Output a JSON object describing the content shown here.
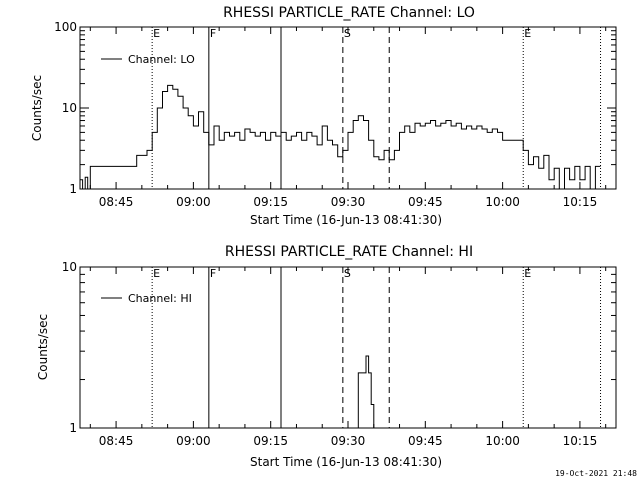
{
  "footer": {
    "stamp": "19-Oct-2021 21:48"
  },
  "chart_data": [
    {
      "type": "line",
      "title": "RHESSI PARTICLE_RATE Channel: LO",
      "xlabel": "Start Time (16-Jun-13 08:41:30)",
      "ylabel": "Counts/sec",
      "y_scale": "log",
      "ylim": [
        1,
        100
      ],
      "xlim": [
        "08:38",
        "10:22"
      ],
      "xticks": [
        "08:45",
        "09:00",
        "09:15",
        "09:30",
        "09:45",
        "10:00",
        "10:15"
      ],
      "yticks": [
        "1",
        "10",
        "100"
      ],
      "legend": {
        "position": "top-left",
        "entries": [
          "Channel: LO"
        ]
      },
      "markers": [
        {
          "time": "08:52",
          "style": "dotted",
          "label": "E"
        },
        {
          "time": "09:03",
          "style": "solid",
          "label": "F"
        },
        {
          "time": "09:17",
          "style": "solid",
          "label": ""
        },
        {
          "time": "09:29",
          "style": "dashed",
          "label": "S"
        },
        {
          "time": "09:38",
          "style": "dashed",
          "label": ""
        },
        {
          "time": "10:04",
          "style": "dotted",
          "label": "E"
        },
        {
          "time": "10:19",
          "style": "dotted",
          "label": ""
        }
      ],
      "series": [
        {
          "name": "Channel: LO",
          "points": [
            [
              "08:38",
              1.3
            ],
            [
              "08:38.5",
              1
            ],
            [
              "08:39",
              1.4
            ],
            [
              "08:39.5",
              1
            ],
            [
              "08:40",
              1.9
            ],
            [
              "08:41",
              1.9
            ],
            [
              "08:42",
              1.9
            ],
            [
              "08:44",
              1.9
            ],
            [
              "08:46",
              1.9
            ],
            [
              "08:48",
              1.9
            ],
            [
              "08:49",
              2.6
            ],
            [
              "08:50",
              2.6
            ],
            [
              "08:51",
              3.0
            ],
            [
              "08:52",
              5
            ],
            [
              "08:53",
              10
            ],
            [
              "08:54",
              16
            ],
            [
              "08:55",
              19
            ],
            [
              "08:56",
              17
            ],
            [
              "08:57",
              14
            ],
            [
              "08:58",
              10
            ],
            [
              "08:59",
              8
            ],
            [
              "09:00",
              6
            ],
            [
              "09:01",
              9
            ],
            [
              "09:02",
              5
            ],
            [
              "09:03",
              3.5
            ],
            [
              "09:04",
              6
            ],
            [
              "09:05",
              4
            ],
            [
              "09:06",
              5
            ],
            [
              "09:07",
              4.5
            ],
            [
              "09:08",
              5
            ],
            [
              "09:09",
              4
            ],
            [
              "09:10",
              5.5
            ],
            [
              "09:11",
              5
            ],
            [
              "09:12",
              4.5
            ],
            [
              "09:13",
              5
            ],
            [
              "09:14",
              4
            ],
            [
              "09:15",
              5
            ],
            [
              "09:16",
              4.5
            ],
            [
              "09:17",
              5
            ],
            [
              "09:18",
              4
            ],
            [
              "09:19",
              4.5
            ],
            [
              "09:20",
              5
            ],
            [
              "09:21",
              4
            ],
            [
              "09:22",
              5
            ],
            [
              "09:23",
              4.5
            ],
            [
              "09:24",
              3.5
            ],
            [
              "09:25",
              6
            ],
            [
              "09:26",
              4
            ],
            [
              "09:27",
              3.5
            ],
            [
              "09:28",
              2.5
            ],
            [
              "09:29",
              3
            ],
            [
              "09:30",
              5
            ],
            [
              "09:31",
              7
            ],
            [
              "09:32",
              8
            ],
            [
              "09:33",
              7
            ],
            [
              "09:34",
              4
            ],
            [
              "09:35",
              2.5
            ],
            [
              "09:36",
              2.3
            ],
            [
              "09:37",
              3
            ],
            [
              "09:38",
              2.3
            ],
            [
              "09:39",
              3
            ],
            [
              "09:40",
              5
            ],
            [
              "09:41",
              6
            ],
            [
              "09:42",
              5
            ],
            [
              "09:43",
              6.5
            ],
            [
              "09:44",
              6
            ],
            [
              "09:45",
              6.5
            ],
            [
              "09:46",
              7
            ],
            [
              "09:47",
              6
            ],
            [
              "09:48",
              6.5
            ],
            [
              "09:49",
              7
            ],
            [
              "09:50",
              6
            ],
            [
              "09:51",
              6.5
            ],
            [
              "09:52",
              5.5
            ],
            [
              "09:53",
              6
            ],
            [
              "09:54",
              5.5
            ],
            [
              "09:55",
              6
            ],
            [
              "09:56",
              5.5
            ],
            [
              "09:57",
              5
            ],
            [
              "09:58",
              5.5
            ],
            [
              "09:59",
              5
            ],
            [
              "10:00",
              4
            ],
            [
              "10:01",
              4
            ],
            [
              "10:02",
              4
            ],
            [
              "10:03",
              4
            ],
            [
              "10:04",
              3
            ],
            [
              "10:05",
              2
            ],
            [
              "10:06",
              2.5
            ],
            [
              "10:07",
              1.8
            ],
            [
              "10:08",
              2.6
            ],
            [
              "10:09",
              1.3
            ],
            [
              "10:10",
              1.8
            ],
            [
              "10:11",
              1
            ],
            [
              "10:12",
              1.8
            ],
            [
              "10:13",
              1.3
            ],
            [
              "10:14",
              1.9
            ],
            [
              "10:15",
              1.3
            ],
            [
              "10:16",
              1.9
            ],
            [
              "10:17",
              1
            ],
            [
              "10:18",
              1.9
            ],
            [
              "10:19",
              1.9
            ]
          ]
        }
      ]
    },
    {
      "type": "line",
      "title": "RHESSI PARTICLE_RATE Channel: HI",
      "xlabel": "Start Time (16-Jun-13 08:41:30)",
      "ylabel": "Counts/sec",
      "y_scale": "log",
      "ylim": [
        1,
        10
      ],
      "xlim": [
        "08:38",
        "10:22"
      ],
      "xticks": [
        "08:45",
        "09:00",
        "09:15",
        "09:30",
        "09:45",
        "10:00",
        "10:15"
      ],
      "yticks": [
        "1",
        "10"
      ],
      "legend": {
        "position": "top-left",
        "entries": [
          "Channel: HI"
        ]
      },
      "markers": [
        {
          "time": "08:52",
          "style": "dotted",
          "label": "E"
        },
        {
          "time": "09:03",
          "style": "solid",
          "label": "F"
        },
        {
          "time": "09:17",
          "style": "solid",
          "label": ""
        },
        {
          "time": "09:29",
          "style": "dashed",
          "label": "S"
        },
        {
          "time": "09:38",
          "style": "dashed",
          "label": ""
        },
        {
          "time": "10:04",
          "style": "dotted",
          "label": "E"
        },
        {
          "time": "10:19",
          "style": "dotted",
          "label": ""
        }
      ],
      "series": [
        {
          "name": "Channel: HI",
          "points": [
            [
              "09:31",
              1
            ],
            [
              "09:32",
              2.2
            ],
            [
              "09:33",
              2.2
            ],
            [
              "09:33.5",
              2.8
            ],
            [
              "09:34",
              2.2
            ],
            [
              "09:34.5",
              1.4
            ],
            [
              "09:35",
              1
            ]
          ]
        }
      ]
    }
  ]
}
